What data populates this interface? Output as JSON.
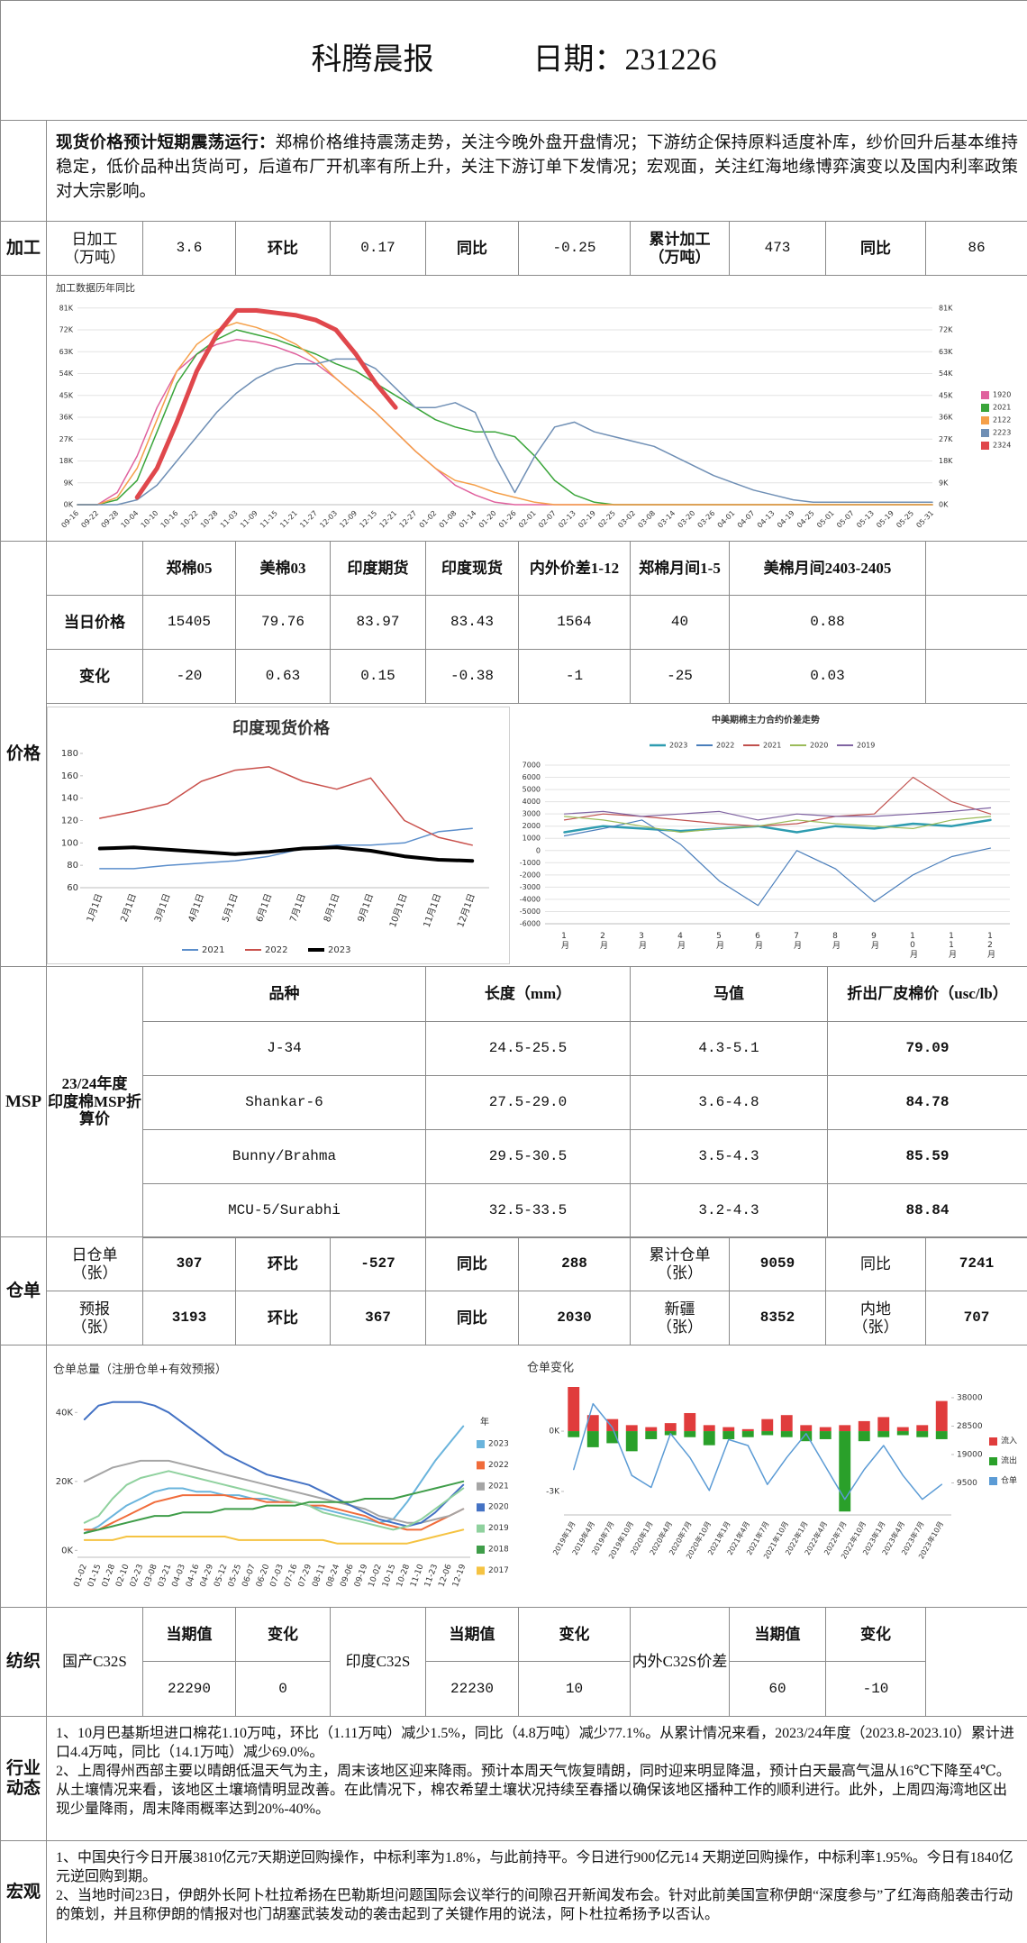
{
  "header": {
    "title": "科腾晨报",
    "date": "日期：231226"
  },
  "summary": {
    "lead": "现货价格预计短期震荡运行：",
    "text": "郑棉价格维持震荡走势，关注今晚外盘开盘情况；下游纺企保持原料适度补库，纱价回升后基本维持稳定，低价品种出货尚可，后道布厂开机率有所上升，关注下游订单下发情况；宏观面，关注红海地缘博弈演变以及国内利率政策对大宗影响。"
  },
  "processing": {
    "label": "加工",
    "cells": [
      "日加工\n（万吨）",
      3.6,
      "环比",
      0.17,
      "同比",
      -0.25,
      "累计加工\n（万吨）",
      473,
      "同比",
      86
    ]
  },
  "price": {
    "label": "价格",
    "table": {
      "header": [
        "郑棉05",
        "美棉03",
        "印度期货",
        "印度现货",
        "内外价差1-12",
        "郑棉月间1-5",
        "美棉月间2403-2405"
      ],
      "rows": [
        {
          "label": "当日价格",
          "values": [
            15405,
            79.76,
            83.97,
            83.43,
            1564,
            40,
            0.88
          ]
        },
        {
          "label": "变化",
          "values": [
            -20,
            0.63,
            0.15,
            -0.38,
            -1,
            -25,
            0.03
          ]
        }
      ]
    }
  },
  "msp": {
    "label": "MSP",
    "group": "23/24年度\n印度棉MSP折\n算价",
    "header": [
      "品种",
      "长度（mm）",
      "马值",
      "折出厂皮棉价（usc/lb）"
    ],
    "rows": [
      [
        "J-34",
        "24.5-25.5",
        "4.3-5.1",
        79.09
      ],
      [
        "Shankar-6",
        "27.5-29.0",
        "3.6-4.8",
        84.78
      ],
      [
        "Bunny/Brahma",
        "29.5-30.5",
        "3.5-4.3",
        85.59
      ],
      [
        "MCU-5/Surabhi",
        "32.5-33.5",
        "3.2-4.3",
        88.84
      ]
    ]
  },
  "warehouse": {
    "label": "仓单",
    "rows": [
      [
        "日仓单\n（张）",
        307,
        "环比",
        -527,
        "同比",
        288,
        "累计仓单\n（张）",
        9059,
        "同比",
        7241
      ],
      [
        "预报\n（张）",
        3193,
        "环比",
        367,
        "同比",
        2030,
        "新疆\n（张）",
        8352,
        "内地\n（张）",
        707
      ]
    ]
  },
  "textile": {
    "label": "纺织",
    "groups": [
      {
        "name": "国产C32S",
        "current_label": "当期值",
        "change_label": "变化",
        "current": 22290,
        "change": 0
      },
      {
        "name": "印度C32S",
        "current_label": "当期值",
        "change_label": "变化",
        "current": 22230,
        "change": 10
      },
      {
        "name": "内外C32S价差",
        "current_label": "当期值",
        "change_label": "变化",
        "current": 60,
        "change": -10
      }
    ]
  },
  "industry": {
    "label": "行业\n动态",
    "paragraphs": [
      "1、10月巴基斯坦进口棉花1.10万吨，环比（1.11万吨）减少1.5%，同比（4.8万吨）减少77.1%。从累计情况来看，2023/24年度（2023.8-2023.10）累计进口4.4万吨，同比（14.1万吨）减少69.0%。",
      "2、上周得州西部主要以晴朗低温天气为主，周末该地区迎来降雨。预计本周天气恢复晴朗，同时迎来明显降温，预计白天最高气温从16℃下降至4℃。从土壤情况来看，该地区土壤墒情明显改善。在此情况下，棉农希望土壤状况持续至春播以确保该地区播种工作的顺利进行。此外，上周四海湾地区出现少量降雨，周末降雨概率达到20%-40%。"
    ]
  },
  "macro": {
    "label": "宏观",
    "paragraphs": [
      "1、中国央行今日开展3810亿元7天期逆回购操作，中标利率为1.8%，与此前持平。今日进行900亿元14 天期逆回购操作，中标利率1.95%。今日有1840亿元逆回购到期。",
      "2、当地时间23日，伊朗外长阿卜杜拉希扬在巴勒斯坦问题国际会议举行的间隙召开新闻发布会。针对此前美国宣称伊朗“深度参与”了红海商船袭击行动的策划，并且称伊朗的情报对也门胡塞武装发动的袭击起到了关键作用的说法，阿卜杜拉希扬予以否认。"
    ]
  },
  "chart_data": [
    {
      "type": "line",
      "title": "加工数据历年同比",
      "grid": true,
      "categories": [
        "09-16",
        "09-22",
        "09-28",
        "10-04",
        "10-10",
        "10-16",
        "10-22",
        "10-28",
        "11-03",
        "11-09",
        "11-15",
        "11-21",
        "11-27",
        "12-03",
        "12-09",
        "12-15",
        "12-21",
        "12-27",
        "01-02",
        "01-08",
        "01-14",
        "01-20",
        "01-26",
        "02-01",
        "02-07",
        "02-13",
        "02-19",
        "02-25",
        "03-02",
        "03-08",
        "03-14",
        "03-20",
        "03-26",
        "04-01",
        "04-07",
        "04-13",
        "04-19",
        "04-25",
        "05-01",
        "05-07",
        "05-13",
        "05-19",
        "05-25",
        "05-31"
      ],
      "ylim": [
        0,
        85
      ],
      "yticks": [
        {
          "value": 0,
          "label": "0K"
        },
        {
          "value": 9,
          "label": "9K"
        },
        {
          "value": 18,
          "label": "18K"
        },
        {
          "value": 27,
          "label": "27K"
        },
        {
          "value": 36,
          "label": "36K"
        },
        {
          "value": 45,
          "label": "45K"
        },
        {
          "value": 54,
          "label": "54K"
        },
        {
          "value": 63,
          "label": "63K"
        },
        {
          "value": 72,
          "label": "72K"
        },
        {
          "value": 81,
          "label": "81K"
        }
      ],
      "series": [
        {
          "name": "1920",
          "color": "#e0629e",
          "values": [
            0,
            0,
            5,
            20,
            40,
            55,
            62,
            66,
            68,
            67,
            65,
            62,
            58,
            52,
            45,
            38,
            30,
            22,
            15,
            8,
            4,
            1,
            0,
            0,
            0,
            0,
            0,
            0,
            0,
            0,
            0,
            0,
            0,
            0,
            0,
            0,
            0,
            0,
            0,
            0,
            0,
            0,
            0,
            0
          ]
        },
        {
          "name": "2021",
          "color": "#3aa53a",
          "values": [
            0,
            0,
            2,
            10,
            30,
            50,
            62,
            68,
            72,
            70,
            68,
            65,
            62,
            58,
            55,
            50,
            45,
            40,
            35,
            32,
            30,
            30,
            28,
            20,
            10,
            4,
            1,
            0,
            0,
            0,
            0,
            0,
            0,
            0,
            0,
            0,
            0,
            0,
            0,
            0,
            0,
            0,
            0,
            0
          ]
        },
        {
          "name": "2122",
          "color": "#f5a04a",
          "values": [
            0,
            0,
            3,
            15,
            35,
            55,
            66,
            72,
            75,
            73,
            70,
            66,
            60,
            52,
            45,
            38,
            30,
            22,
            15,
            10,
            8,
            5,
            3,
            1,
            0,
            0,
            0,
            0,
            0,
            0,
            0,
            0,
            0,
            0,
            0,
            0,
            0,
            0,
            0,
            0,
            0,
            0,
            0,
            0
          ]
        },
        {
          "name": "2223",
          "color": "#6f8fb5",
          "values": [
            0,
            0,
            0,
            2,
            8,
            18,
            28,
            38,
            46,
            52,
            56,
            58,
            58,
            60,
            60,
            56,
            48,
            40,
            40,
            42,
            38,
            20,
            5,
            20,
            32,
            34,
            30,
            28,
            26,
            24,
            20,
            16,
            12,
            9,
            6,
            4,
            2,
            1,
            1,
            1,
            1,
            1,
            1,
            1
          ]
        },
        {
          "name": "2324",
          "color": "#e0474c",
          "values": [
            null,
            null,
            null,
            3,
            15,
            34,
            55,
            70,
            80,
            80,
            79,
            78,
            76,
            72,
            62,
            50,
            40,
            null,
            null,
            null,
            null,
            null,
            null,
            null,
            null,
            null,
            null,
            null,
            null,
            null,
            null,
            null,
            null,
            null,
            null,
            null,
            null,
            null,
            null,
            null,
            null,
            null,
            null,
            null
          ]
        }
      ]
    },
    {
      "type": "line",
      "title": "印度现货价格",
      "grid": false,
      "categories": [
        "1月1日",
        "2月1日",
        "3月1日",
        "4月1日",
        "5月1日",
        "6月1日",
        "7月1日",
        "8月1日",
        "9月1日",
        "10月1日",
        "11月1日",
        "12月1日"
      ],
      "ylim": [
        60,
        180
      ],
      "yticks": [
        60,
        80,
        100,
        120,
        140,
        160,
        180
      ],
      "series": [
        {
          "name": "2021",
          "color": "#5b8ecb",
          "values": [
            77,
            77,
            80,
            82,
            84,
            88,
            95,
            98,
            98,
            100,
            110,
            113
          ]
        },
        {
          "name": "2022",
          "color": "#c9504b",
          "values": [
            122,
            128,
            135,
            155,
            165,
            168,
            155,
            148,
            158,
            120,
            105,
            98
          ]
        },
        {
          "name": "2023",
          "color": "#000000",
          "values": [
            95,
            96,
            94,
            92,
            90,
            92,
            95,
            96,
            93,
            88,
            85,
            84
          ]
        }
      ]
    },
    {
      "type": "line",
      "title": "中美期棉主力合约价差走势",
      "grid": true,
      "categories": [
        "1月",
        "2月",
        "3月",
        "4月",
        "5月",
        "6月",
        "7月",
        "8月",
        "9月",
        "10月",
        "11月",
        "12月"
      ],
      "ylim": [
        -6000,
        7000
      ],
      "yticks": [
        -6000,
        -5000,
        -4000,
        -3000,
        -2000,
        -1000,
        0,
        1000,
        2000,
        3000,
        4000,
        5000,
        6000,
        7000
      ],
      "series": [
        {
          "name": "2023",
          "color": "#2e9cb0",
          "values": [
            1500,
            2000,
            1800,
            1600,
            1800,
            2000,
            1500,
            2000,
            1800,
            2200,
            2000,
            2500
          ]
        },
        {
          "name": "2022",
          "color": "#4a7ebb",
          "values": [
            1200,
            1800,
            2500,
            500,
            -2500,
            -4500,
            0,
            -1500,
            -4200,
            -2000,
            -500,
            200
          ]
        },
        {
          "name": "2021",
          "color": "#c0504d",
          "values": [
            2500,
            3000,
            2800,
            2500,
            2200,
            2000,
            2200,
            2800,
            3000,
            6000,
            4000,
            3000
          ]
        },
        {
          "name": "2020",
          "color": "#9bbb59",
          "values": [
            2800,
            2500,
            2000,
            1500,
            1800,
            2000,
            2500,
            2200,
            2000,
            1800,
            2500,
            2800
          ]
        },
        {
          "name": "2019",
          "color": "#8064a2",
          "values": [
            3000,
            3200,
            2800,
            3000,
            3200,
            2500,
            3000,
            2800,
            2800,
            3000,
            3200,
            3500
          ]
        }
      ]
    },
    {
      "type": "line",
      "title": "仓单总量（注册仓单+有效预报）",
      "grid": false,
      "legend_title": "年",
      "categories": [
        "01-02",
        "01-15",
        "01-28",
        "02-10",
        "02-23",
        "03-08",
        "03-21",
        "04-03",
        "04-16",
        "04-29",
        "05-12",
        "05-25",
        "06-07",
        "06-20",
        "07-03",
        "07-16",
        "07-29",
        "08-11",
        "08-24",
        "09-06",
        "09-19",
        "10-02",
        "10-15",
        "10-28",
        "11-10",
        "11-23",
        "12-06",
        "12-19"
      ],
      "ylim": [
        -2,
        44
      ],
      "yticks": [
        {
          "value": 0,
          "label": "0K"
        },
        {
          "value": 20,
          "label": "20K"
        },
        {
          "value": 40,
          "label": "40K"
        }
      ],
      "series": [
        {
          "name": "2023",
          "color": "#6ab4dc",
          "values": [
            5,
            7,
            10,
            13,
            15,
            17,
            18,
            18,
            17,
            17,
            16,
            16,
            15,
            15,
            14,
            14,
            13,
            12,
            11,
            10,
            9,
            8,
            9,
            14,
            20,
            26,
            31,
            36
          ]
        },
        {
          "name": "2022",
          "color": "#f06c3b",
          "values": [
            6,
            6,
            8,
            10,
            12,
            14,
            15,
            16,
            16,
            16,
            16,
            15,
            15,
            14,
            14,
            14,
            13,
            13,
            12,
            11,
            10,
            8,
            7,
            6,
            6,
            8,
            10,
            12
          ]
        },
        {
          "name": "2021",
          "color": "#a5a5a5",
          "values": [
            20,
            22,
            24,
            25,
            26,
            26,
            26,
            25,
            24,
            23,
            22,
            21,
            20,
            19,
            18,
            17,
            16,
            15,
            14,
            13,
            12,
            10,
            9,
            8,
            8,
            9,
            10,
            12
          ]
        },
        {
          "name": "2020",
          "color": "#4472c4",
          "values": [
            38,
            42,
            43,
            43,
            43,
            42,
            40,
            37,
            34,
            31,
            28,
            26,
            24,
            22,
            21,
            20,
            19,
            17,
            15,
            13,
            11,
            9,
            8,
            7,
            8,
            11,
            15,
            19
          ]
        },
        {
          "name": "2019",
          "color": "#8fd19e",
          "values": [
            8,
            10,
            15,
            19,
            21,
            22,
            23,
            22,
            21,
            20,
            19,
            18,
            17,
            16,
            15,
            14,
            13,
            11,
            10,
            9,
            8,
            7,
            6,
            7,
            9,
            12,
            15,
            18
          ]
        },
        {
          "name": "2018",
          "color": "#3f9d49",
          "values": [
            5,
            6,
            7,
            8,
            9,
            10,
            10,
            11,
            11,
            11,
            12,
            12,
            12,
            13,
            13,
            13,
            14,
            14,
            14,
            14,
            15,
            15,
            15,
            16,
            17,
            18,
            19,
            20
          ]
        },
        {
          "name": "2017",
          "color": "#f5c342",
          "values": [
            3,
            3,
            3,
            4,
            4,
            4,
            4,
            4,
            4,
            4,
            4,
            3,
            3,
            3,
            3,
            3,
            3,
            3,
            2,
            2,
            2,
            2,
            2,
            2,
            3,
            4,
            5,
            6
          ]
        }
      ]
    },
    {
      "type": "bar-line",
      "title": "仓单变化",
      "grid": false,
      "categories": [
        "2019年1月",
        "2019年4月",
        "2019年7月",
        "2019年10月",
        "2020年1月",
        "2020年4月",
        "2020年7月",
        "2020年10月",
        "2021年1月",
        "2021年4月",
        "2021年7月",
        "2021年10月",
        "2022年1月",
        "2022年4月",
        "2022年7月",
        "2022年10月",
        "2023年1月",
        "2023年4月",
        "2023年7月",
        "2023年10月"
      ],
      "ylim": [
        -4170,
        2290
      ],
      "yticks": [
        {
          "value": -3000,
          "label": "-3K"
        },
        {
          "value": 0,
          "label": "0K"
        }
      ],
      "y2lim": [
        -1200,
        42200
      ],
      "y2ticks": [
        9500,
        19000,
        28500,
        38000
      ],
      "series": [
        {
          "name": "流入",
          "color": "#e03c3c",
          "values": [
            2200,
            800,
            600,
            300,
            200,
            400,
            900,
            300,
            200,
            100,
            600,
            800,
            300,
            200,
            300,
            500,
            700,
            200,
            300,
            1500
          ]
        },
        {
          "name": "流出",
          "color": "#2aa02a",
          "values": [
            -300,
            -800,
            -600,
            -1000,
            -400,
            -200,
            -300,
            -700,
            -400,
            -300,
            -200,
            -300,
            -500,
            -400,
            -4000,
            -500,
            -300,
            -200,
            -300,
            -400
          ]
        },
        {
          "name": "仓单",
          "color": "#5b9bd5",
          "axis": "y2",
          "values": [
            14000,
            36000,
            28000,
            12000,
            8000,
            26000,
            18000,
            7000,
            24000,
            22000,
            9000,
            18000,
            26000,
            15000,
            4000,
            14000,
            22000,
            12000,
            4000,
            9000
          ]
        }
      ]
    }
  ]
}
